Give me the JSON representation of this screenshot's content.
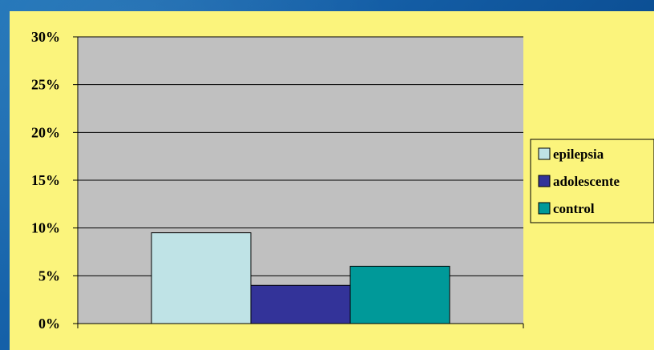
{
  "chart_data": {
    "type": "bar",
    "title": "",
    "xlabel": "",
    "ylabel": "",
    "categories": [
      ""
    ],
    "ylim": [
      0,
      30
    ],
    "yticks": [
      "0%",
      "5%",
      "10%",
      "15%",
      "20%",
      "25%",
      "30%"
    ],
    "grid": true,
    "legend_position": "right",
    "series": [
      {
        "name": "epilepsia",
        "values": [
          9.5
        ],
        "color": "#bfe3e6"
      },
      {
        "name": "adolescente",
        "values": [
          4
        ],
        "color": "#333399"
      },
      {
        "name": "control",
        "values": [
          6
        ],
        "color": "#009999"
      }
    ],
    "plot_background": "#c0c0c0",
    "panel_background": "#fbf47c"
  }
}
